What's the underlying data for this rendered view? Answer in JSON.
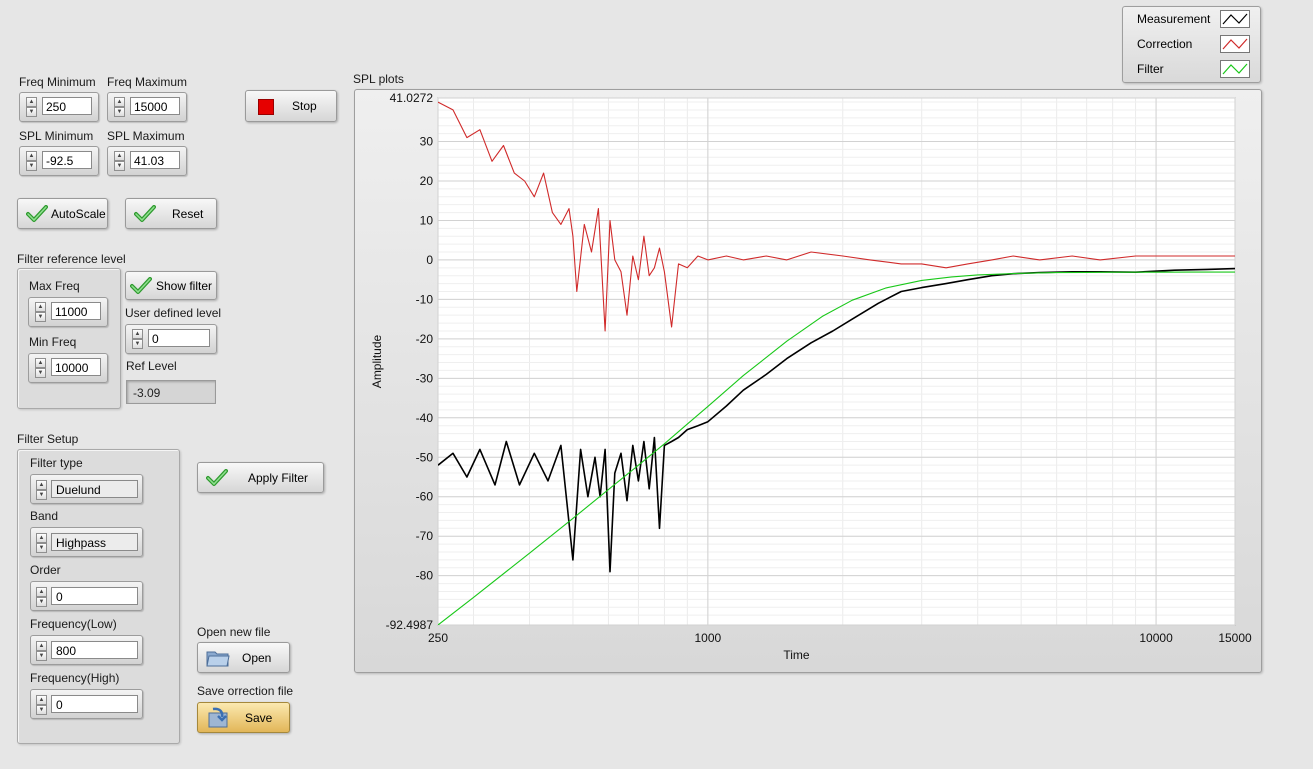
{
  "controls": {
    "freq_min": {
      "label": "Freq Minimum",
      "value": "250"
    },
    "freq_max": {
      "label": "Freq Maximum",
      "value": "15000"
    },
    "spl_min": {
      "label": "SPL Minimum",
      "value": "-92.5"
    },
    "spl_max": {
      "label": "SPL Maximum",
      "value": "41.03"
    }
  },
  "buttons": {
    "stop": "Stop",
    "autoscale": "AutoScale",
    "reset": "Reset",
    "show_filter": "Show filter",
    "apply_filter": "Apply Filter",
    "open": "Open",
    "save": "Save"
  },
  "filter_ref": {
    "title": "Filter reference level",
    "max_freq_label": "Max Freq",
    "max_freq": "11000",
    "min_freq_label": "Min Freq",
    "min_freq": "10000",
    "user_level_label": "User defined level",
    "user_level": "0",
    "ref_level_label": "Ref Level",
    "ref_level": "-3.09"
  },
  "filter_setup": {
    "title": "Filter Setup",
    "type_label": "Filter type",
    "type": "Duelund",
    "band_label": "Band",
    "band": "Highpass",
    "order_label": "Order",
    "order": "0",
    "freq_low_label": "Frequency(Low)",
    "freq_low": "800",
    "freq_high_label": "Frequency(High)",
    "freq_high": "0"
  },
  "files": {
    "open_label": "Open new file",
    "save_label": "Save orrection file"
  },
  "colors": {
    "measurement": "#000000",
    "correction": "#d02a2a",
    "filter": "#19c819",
    "stop_square": "#e60000"
  },
  "chart_data": {
    "type": "line",
    "title": "SPL plots",
    "xlabel": "Time",
    "ylabel": "Amplitude",
    "x_scale": "log",
    "xlim": [
      250,
      15000
    ],
    "ylim": [
      -92.4987,
      41.0272
    ],
    "x_ticks": [
      250,
      1000,
      10000,
      15000
    ],
    "y_ticks": [
      -92.4987,
      -80,
      -70,
      -60,
      -50,
      -40,
      -30,
      -20,
      -10,
      0,
      10,
      20,
      30,
      41.0272
    ],
    "grid": true,
    "legend_position": "top-right",
    "series": [
      {
        "name": "Measurement",
        "color": "#000000",
        "x": [
          250,
          270,
          290,
          310,
          335,
          355,
          380,
          410,
          440,
          470,
          500,
          520,
          540,
          560,
          575,
          590,
          605,
          620,
          640,
          660,
          680,
          700,
          720,
          740,
          760,
          780,
          800,
          830,
          860,
          900,
          950,
          1000,
          1100,
          1200,
          1350,
          1500,
          1700,
          1900,
          2100,
          2400,
          2700,
          3000,
          3400,
          3800,
          4300,
          4800,
          5500,
          6500,
          7500,
          9000,
          11000,
          13000,
          15000
        ],
        "y": [
          -52,
          -49,
          -55,
          -48,
          -57,
          -46,
          -57,
          -49,
          -56,
          -47,
          -76,
          -48,
          -60,
          -50,
          -60,
          -48,
          -79,
          -54,
          -49,
          -61,
          -47,
          -56,
          -46,
          -58,
          -45,
          -68,
          -47,
          -46,
          -45,
          -43,
          -42,
          -41,
          -37,
          -33,
          -29,
          -25,
          -21,
          -18,
          -15,
          -11,
          -8,
          -7,
          -6,
          -5,
          -4,
          -3.5,
          -3.2,
          -3.0,
          -3.0,
          -3.1,
          -2.6,
          -2.4,
          -2.2
        ]
      },
      {
        "name": "Correction",
        "color": "#d02a2a",
        "x": [
          250,
          270,
          290,
          310,
          330,
          350,
          370,
          390,
          410,
          430,
          450,
          470,
          490,
          500,
          510,
          530,
          550,
          570,
          590,
          605,
          620,
          640,
          660,
          680,
          700,
          720,
          740,
          760,
          780,
          800,
          830,
          860,
          900,
          950,
          1000,
          1100,
          1200,
          1350,
          1500,
          1700,
          2000,
          2300,
          2700,
          3000,
          3400,
          3800,
          4300,
          4800,
          5500,
          6500,
          7500,
          9000,
          11000,
          13000,
          15000
        ],
        "y": [
          40,
          38,
          31,
          33,
          25,
          29,
          22,
          20,
          16,
          22,
          12,
          9,
          13,
          6,
          -8,
          9,
          2,
          13,
          -18,
          10,
          0,
          -3,
          -14,
          1,
          -5,
          6,
          -4,
          -2,
          3,
          -3,
          -17,
          -1,
          -2,
          1,
          0,
          1,
          0,
          1,
          0,
          2,
          1,
          0,
          -1,
          -1,
          -2,
          -1,
          0,
          1,
          0,
          1,
          0,
          1,
          1,
          1,
          1
        ]
      },
      {
        "name": "Filter",
        "color": "#19c819",
        "x": [
          250,
          300,
          400,
          500,
          600,
          700,
          800,
          900,
          1000,
          1200,
          1500,
          1800,
          2100,
          2500,
          3000,
          3500,
          4000,
          5000,
          6000,
          7000,
          8000,
          10000,
          12000,
          15000
        ],
        "y": [
          -92.5,
          -85.5,
          -74.3,
          -65.5,
          -58.2,
          -52,
          -46.6,
          -41.6,
          -37.1,
          -29.3,
          -20.6,
          -14.3,
          -10.2,
          -7.1,
          -5.2,
          -4.3,
          -3.8,
          -3.4,
          -3.2,
          -3.15,
          -3.12,
          -3.1,
          -3.09,
          -3.09
        ]
      }
    ]
  }
}
